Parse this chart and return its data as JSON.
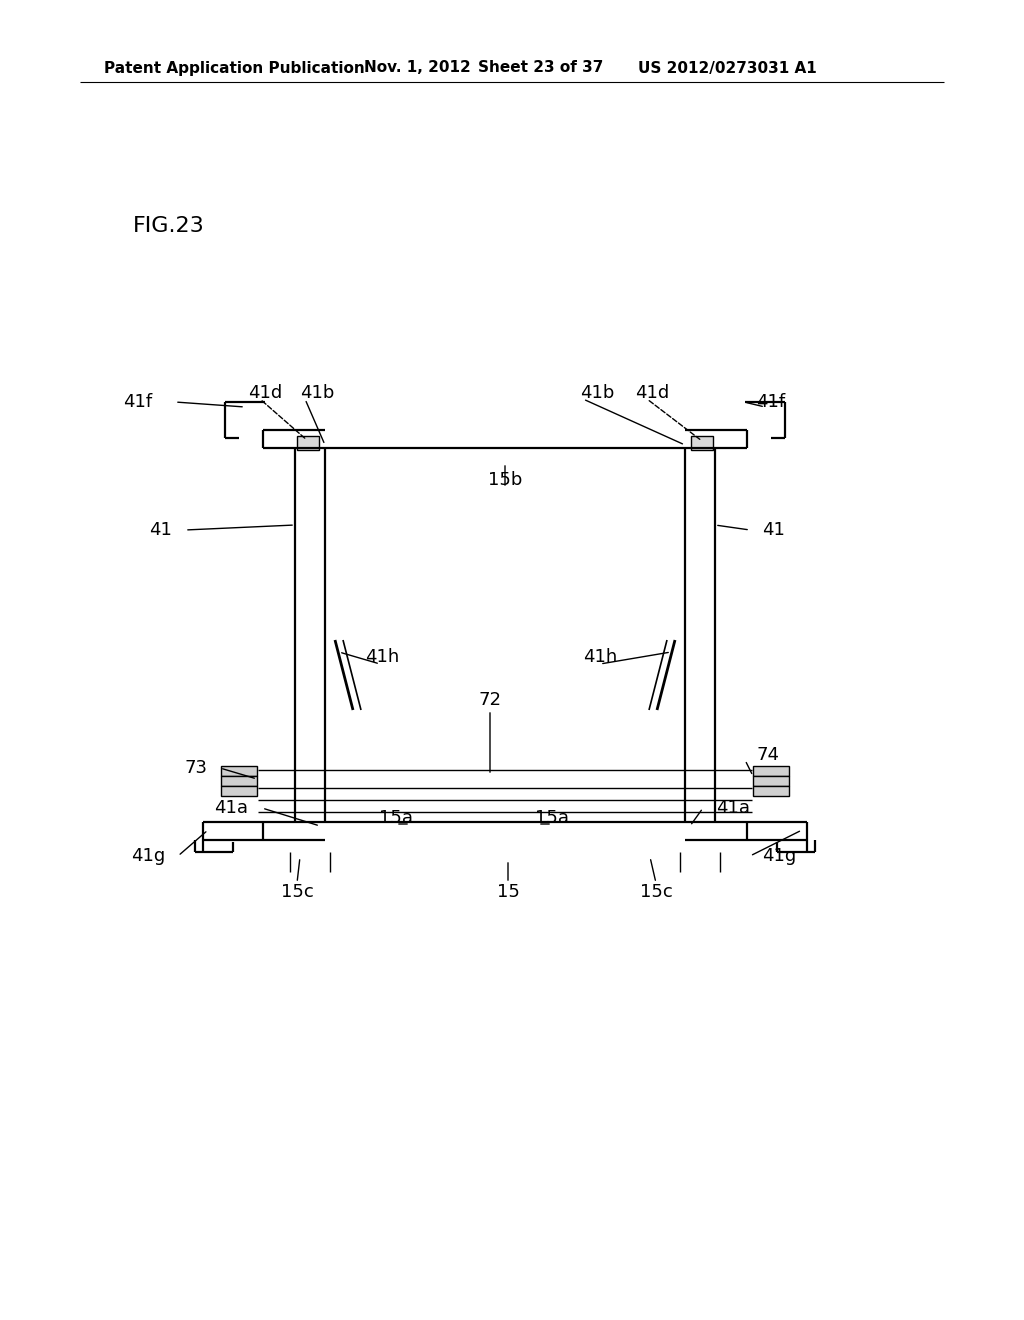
{
  "bg_color": "#ffffff",
  "line_color": "#000000",
  "header_left": "Patent Application Publication",
  "header_date": "Nov. 1, 2012",
  "header_sheet": "Sheet 23 of 37",
  "header_patent": "US 2012/0273031 A1",
  "fig_label": "FIG.23",
  "lw_main": 1.6,
  "lw_thin": 1.0,
  "fs_label": 13,
  "fs_header": 11,
  "fs_fig": 16
}
